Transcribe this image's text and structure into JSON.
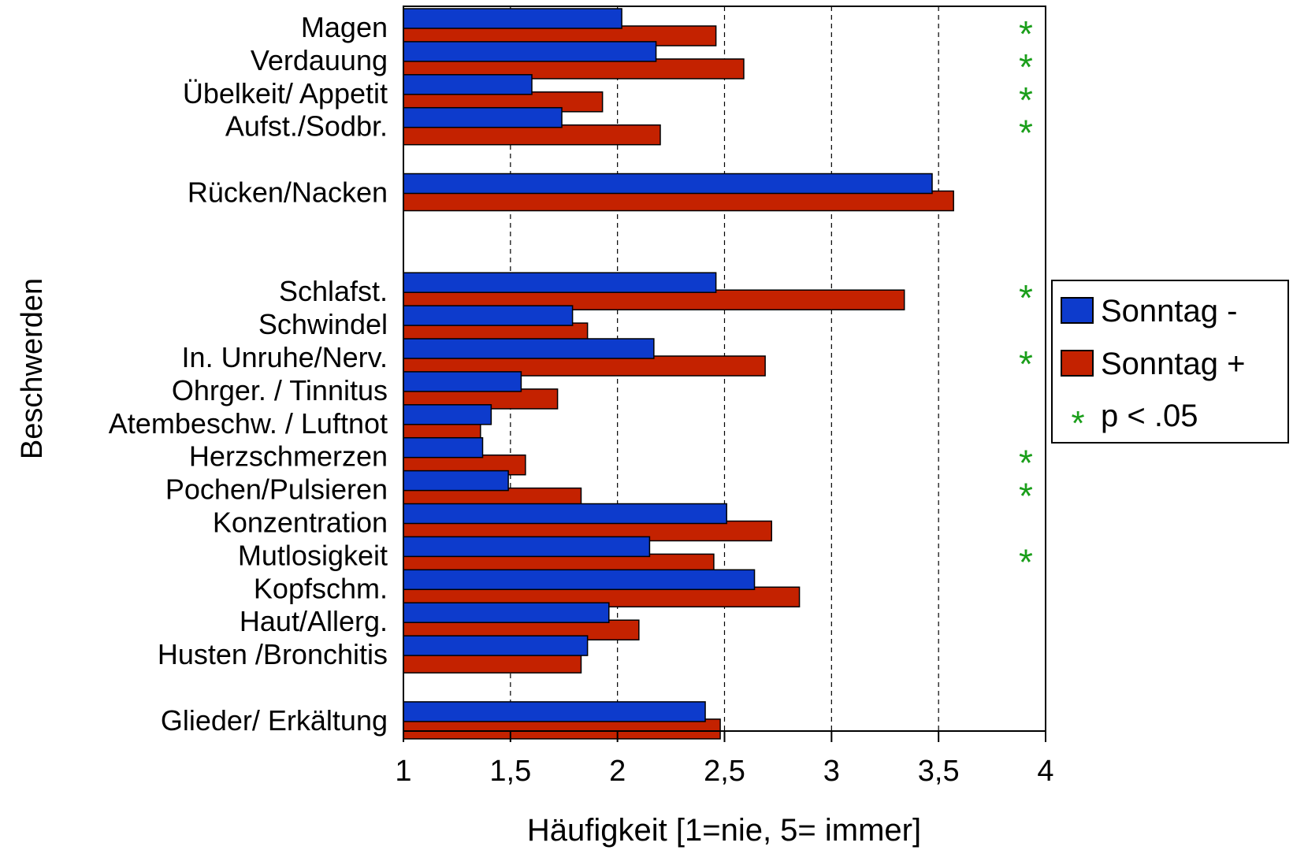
{
  "chart_data": {
    "type": "bar",
    "orientation": "horizontal",
    "title": "",
    "xlabel": "Häufigkeit [1=nie, 5= immer]",
    "ylabel": "Beschwerden",
    "xlim": [
      1,
      4
    ],
    "xticks": [
      "1",
      "1,5",
      "2",
      "2,5",
      "3",
      "3,5",
      "4"
    ],
    "xtick_values": [
      1,
      1.5,
      2,
      2.5,
      3,
      3.5,
      4
    ],
    "grid": "vertical dashed at 1.5, 2, 2.5, 3, 3.5",
    "legend_position": "right",
    "categories": [
      "Magen",
      "Verdauung",
      "Übelkeit/ Appetit",
      "Aufst./Sodbr.",
      "Rücken/Nacken",
      "Schlafst.",
      "Schwindel",
      "In. Unruhe/Nerv.",
      "Ohrger. / Tinnitus",
      "Atembeschw. / Luftnot",
      "Herzschmerzen",
      "Pochen/Pulsieren",
      "Konzentration",
      "Mutlosigkeit",
      "Kopfschm.",
      "Haut/Allerg.",
      "Husten /Bronchitis",
      "Glieder/ Erkältung"
    ],
    "series": [
      {
        "name": "Sonntag -",
        "color": "#0d3bcc",
        "values": [
          2.02,
          2.18,
          1.6,
          1.74,
          3.47,
          2.46,
          1.79,
          2.17,
          1.55,
          1.41,
          1.37,
          1.49,
          2.51,
          2.15,
          2.64,
          1.96,
          1.86,
          2.41
        ]
      },
      {
        "name": "Sonntag +",
        "color": "#c42200",
        "values": [
          2.46,
          2.59,
          1.93,
          2.2,
          3.57,
          3.34,
          1.86,
          2.69,
          1.72,
          1.36,
          1.57,
          1.83,
          2.72,
          2.45,
          2.85,
          2.1,
          1.83,
          2.48
        ]
      }
    ],
    "significant": [
      true,
      true,
      true,
      true,
      false,
      true,
      false,
      true,
      false,
      false,
      true,
      true,
      false,
      true,
      false,
      false,
      false,
      false
    ],
    "significance_marker": "*",
    "significance_label": "p < .05",
    "significance_color": "#1a9e1a"
  }
}
